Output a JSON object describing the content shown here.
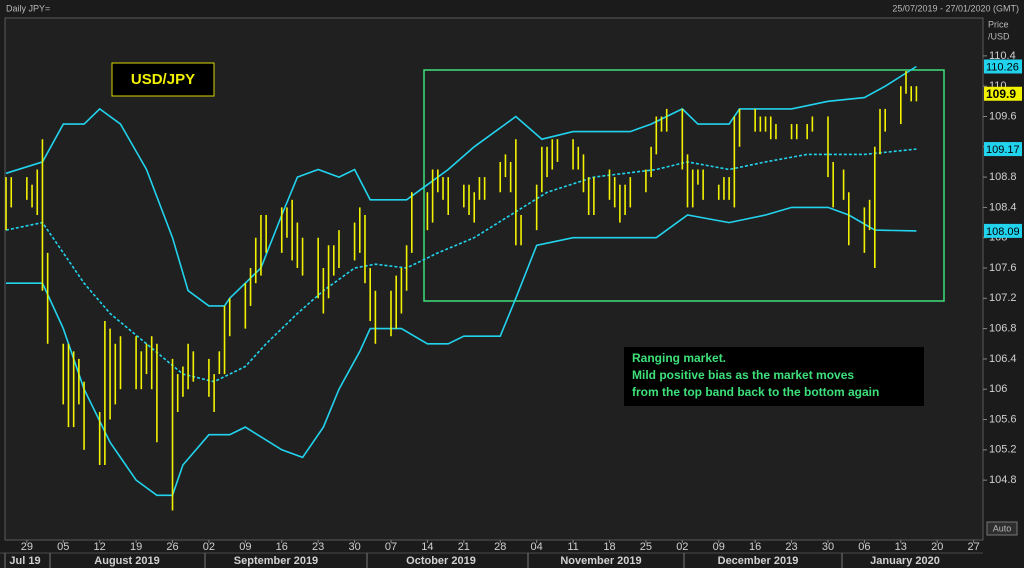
{
  "header": {
    "instrument": "Daily JPY=",
    "range": "25/07/2019 - 27/01/2020 (GMT)"
  },
  "chart_data": {
    "type": "range_bar",
    "color": "#f2f200",
    "x": [
      -4,
      -3,
      0,
      1,
      2,
      3,
      4,
      7,
      8,
      9,
      10,
      11,
      14,
      15,
      16,
      17,
      18,
      21,
      22,
      23,
      24,
      25,
      28,
      29,
      30,
      31,
      32,
      35,
      36,
      37,
      38,
      39,
      42,
      43,
      44,
      45,
      46,
      49,
      50,
      51,
      52,
      53,
      56,
      57,
      58,
      59,
      60,
      63,
      64,
      65,
      66,
      67,
      70,
      71,
      72,
      73,
      74,
      77,
      78,
      79,
      80,
      81,
      84,
      85,
      86,
      87,
      88,
      91,
      92,
      93,
      94,
      95,
      98,
      99,
      100,
      101,
      102,
      105,
      106,
      107,
      108,
      109,
      112,
      113,
      114,
      115,
      116,
      119,
      120,
      121,
      122,
      123,
      126,
      127,
      128,
      129,
      130,
      133,
      134,
      135,
      136,
      137,
      140,
      141,
      142,
      143,
      144,
      147,
      148,
      150,
      151,
      154,
      155,
      157,
      158,
      161,
      162,
      163,
      164,
      165,
      168,
      169,
      170,
      171
    ],
    "high": [
      108.8,
      108.8,
      108.8,
      108.7,
      108.9,
      109.3,
      107.8,
      106.6,
      106.6,
      106.5,
      106.4,
      106.1,
      105.7,
      106.9,
      106.8,
      106.6,
      106.7,
      106.7,
      106.5,
      106.6,
      106.7,
      106.6,
      106.4,
      106.2,
      106.3,
      106.6,
      106.5,
      106.4,
      106.2,
      106.5,
      107.1,
      107.2,
      107.4,
      107.6,
      108.0,
      108.3,
      108.3,
      108.4,
      108.4,
      108.5,
      108.2,
      108.0,
      108.0,
      107.6,
      107.9,
      107.9,
      108.1,
      108.2,
      108.4,
      108.3,
      107.6,
      107.3,
      107.3,
      107.5,
      107.6,
      107.9,
      108.6,
      108.6,
      108.9,
      108.9,
      108.8,
      108.8,
      108.7,
      108.7,
      108.6,
      108.8,
      108.8,
      109.0,
      109.1,
      109.0,
      109.3,
      108.3,
      108.7,
      109.2,
      109.2,
      109.3,
      109.3,
      109.3,
      109.2,
      109.1,
      108.8,
      108.8,
      108.9,
      108.8,
      108.7,
      108.7,
      108.8,
      108.9,
      109.2,
      109.6,
      109.6,
      109.7,
      109.7,
      109.1,
      108.9,
      108.9,
      108.9,
      108.7,
      108.8,
      108.8,
      109.6,
      109.7,
      109.7,
      109.6,
      109.6,
      109.6,
      109.5,
      109.5,
      109.5,
      109.5,
      109.6,
      109.6,
      109.0,
      108.9,
      108.6,
      108.4,
      108.5,
      109.2,
      109.7,
      109.7,
      110.0,
      110.2,
      110.0,
      110.0
    ],
    "low": [
      108.1,
      108.4,
      108.5,
      108.4,
      108.3,
      107.3,
      106.6,
      105.8,
      105.5,
      105.5,
      105.8,
      105.2,
      105.0,
      105.0,
      105.6,
      105.8,
      106.0,
      106.0,
      106.0,
      106.2,
      106.0,
      105.3,
      104.4,
      105.7,
      105.9,
      106.0,
      106.1,
      105.9,
      105.7,
      106.2,
      106.2,
      106.7,
      106.8,
      107.1,
      107.4,
      107.5,
      107.8,
      107.8,
      108.0,
      107.7,
      107.6,
      107.5,
      107.2,
      107.0,
      107.2,
      107.5,
      107.6,
      107.7,
      107.8,
      107.4,
      106.9,
      106.6,
      106.7,
      106.8,
      107.0,
      107.3,
      107.8,
      108.1,
      108.2,
      108.6,
      108.5,
      108.3,
      108.4,
      108.3,
      108.2,
      108.5,
      108.5,
      108.6,
      108.8,
      108.6,
      107.9,
      107.9,
      108.1,
      108.6,
      108.8,
      108.9,
      109.0,
      108.9,
      108.9,
      108.6,
      108.3,
      108.3,
      108.5,
      108.4,
      108.2,
      108.3,
      108.4,
      108.6,
      108.8,
      109.1,
      109.4,
      109.4,
      108.9,
      108.4,
      108.4,
      108.7,
      108.5,
      108.5,
      108.5,
      108.5,
      108.4,
      109.2,
      109.4,
      109.4,
      109.4,
      109.3,
      109.3,
      109.3,
      109.3,
      109.3,
      109.4,
      108.8,
      108.4,
      108.5,
      107.9,
      107.8,
      108.1,
      107.6,
      109.1,
      109.4,
      109.5,
      109.9,
      109.8,
      109.8
    ],
    "bands": [
      {
        "color": "#22d3ee",
        "dashed": false,
        "x": [
          -4,
          3,
          7,
          11,
          14,
          18,
          23,
          28,
          31,
          35,
          38,
          39,
          45,
          49,
          52,
          56,
          60,
          63,
          66,
          73,
          77,
          81,
          86,
          92,
          94,
          99,
          105,
          116,
          120,
          126,
          129,
          135,
          137,
          147,
          154,
          161,
          165,
          171
        ],
        "values": [
          108.85,
          109.0,
          109.5,
          109.5,
          109.7,
          109.5,
          108.9,
          108.0,
          107.3,
          107.1,
          107.1,
          107.2,
          107.6,
          108.3,
          108.8,
          108.9,
          108.8,
          108.9,
          108.5,
          108.5,
          108.7,
          108.9,
          109.2,
          109.5,
          109.6,
          109.3,
          109.4,
          109.4,
          109.5,
          109.7,
          109.5,
          109.5,
          109.7,
          109.7,
          109.8,
          109.85,
          110.0,
          110.26
        ]
      },
      {
        "color": "#22d3ee",
        "dashed": true,
        "x": [
          -4,
          3,
          7,
          11,
          16,
          23,
          30,
          36,
          42,
          46,
          52,
          57,
          63,
          67,
          73,
          79,
          86,
          93,
          100,
          109,
          121,
          127,
          135,
          142,
          150,
          161,
          171
        ],
        "values": [
          108.1,
          108.2,
          107.8,
          107.4,
          107.0,
          106.6,
          106.2,
          106.1,
          106.3,
          106.6,
          107.0,
          107.3,
          107.6,
          107.65,
          107.6,
          107.8,
          108.0,
          108.3,
          108.6,
          108.8,
          108.9,
          109.0,
          108.9,
          109.0,
          109.1,
          109.1,
          109.17
        ]
      },
      {
        "color": "#22d3ee",
        "dashed": false,
        "x": [
          -4,
          3,
          7,
          11,
          16,
          21,
          25,
          28,
          30,
          35,
          39,
          42,
          49,
          53,
          57,
          60,
          64,
          66,
          72,
          77,
          81,
          84,
          91,
          94,
          98,
          105,
          121,
          127,
          135,
          142,
          147,
          154,
          158,
          163,
          171
        ],
        "values": [
          107.4,
          107.4,
          106.8,
          106.0,
          105.3,
          104.8,
          104.6,
          104.6,
          105.0,
          105.4,
          105.4,
          105.5,
          105.2,
          105.1,
          105.5,
          106.0,
          106.5,
          106.8,
          106.8,
          106.6,
          106.6,
          106.7,
          106.7,
          107.2,
          107.9,
          108.0,
          108.0,
          108.3,
          108.2,
          108.3,
          108.4,
          108.4,
          108.3,
          108.1,
          108.09
        ]
      }
    ],
    "xlim": [
      -4.2,
      183.8
    ],
    "xticks": [
      {
        "value": 0,
        "label": "29"
      },
      {
        "value": 7,
        "label": "05"
      },
      {
        "value": 14,
        "label": "12"
      },
      {
        "value": 21,
        "label": "19"
      },
      {
        "value": 28,
        "label": "26"
      },
      {
        "value": 35,
        "label": "02"
      },
      {
        "value": 42,
        "label": "09"
      },
      {
        "value": 49,
        "label": "16"
      },
      {
        "value": 56,
        "label": "23"
      },
      {
        "value": 63,
        "label": "30"
      },
      {
        "value": 70,
        "label": "07"
      },
      {
        "value": 77,
        "label": "14"
      },
      {
        "value": 84,
        "label": "21"
      },
      {
        "value": 91,
        "label": "28"
      },
      {
        "value": 98,
        "label": "04"
      },
      {
        "value": 105,
        "label": "11"
      },
      {
        "value": 112,
        "label": "18"
      },
      {
        "value": 119,
        "label": "25"
      },
      {
        "value": 126,
        "label": "02"
      },
      {
        "value": 133,
        "label": "09"
      },
      {
        "value": 140,
        "label": "16"
      },
      {
        "value": 147,
        "label": "23"
      },
      {
        "value": 154,
        "label": "30"
      },
      {
        "value": 161,
        "label": "06"
      },
      {
        "value": 168,
        "label": "13"
      },
      {
        "value": 175,
        "label": "20"
      },
      {
        "value": 182,
        "label": "27"
      }
    ],
    "months": [
      "Jul 19",
      "August 2019",
      "September 2019",
      "October 2019",
      "November 2019",
      "December 2019",
      "January 2020"
    ],
    "ylim": [
      104.01,
      110.9
    ],
    "yticks": [
      110.4,
      110,
      109.6,
      109.2,
      108.8,
      108.4,
      108,
      107.6,
      107.2,
      106.8,
      106.4,
      106,
      105.6,
      105.2,
      104.8
    ],
    "y_axis_label": [
      "Price",
      "/USD"
    ],
    "price_tags": [
      {
        "value": 110.26,
        "color": "#22d3ee",
        "bold": false
      },
      {
        "value": 109.9,
        "color": "#f2f200",
        "bold": true
      },
      {
        "value": 109.17,
        "color": "#22d3ee",
        "bold": false
      },
      {
        "value": 108.09,
        "color": "#22d3ee",
        "bold": false
      }
    ],
    "symbol_label": "USD/JPY",
    "annotation": [
      "Ranging market.",
      "Mild positive bias as the market moves",
      "from the top band back to the bottom again"
    ],
    "autoscale_button": "Auto"
  }
}
